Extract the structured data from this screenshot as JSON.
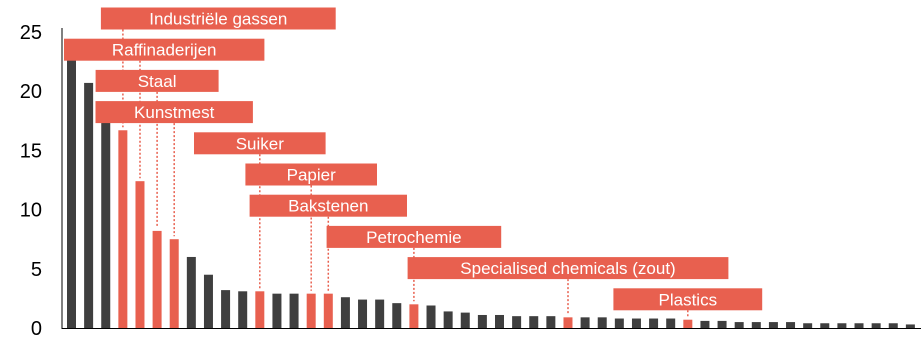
{
  "chart_data": {
    "type": "bar",
    "title": "",
    "xlabel": "",
    "ylabel": "",
    "ylim": [
      0,
      25
    ],
    "yticks": [
      0,
      5,
      10,
      15,
      20,
      25
    ],
    "grid": false,
    "values": [
      24.1,
      20.7,
      18.2,
      16.7,
      12.4,
      8.2,
      7.5,
      6.0,
      4.5,
      3.2,
      3.1,
      3.1,
      2.9,
      2.9,
      2.9,
      2.9,
      2.6,
      2.4,
      2.4,
      2.1,
      2.0,
      1.9,
      1.4,
      1.3,
      1.1,
      1.1,
      1.0,
      1.0,
      1.0,
      0.9,
      0.9,
      0.9,
      0.8,
      0.8,
      0.8,
      0.8,
      0.7,
      0.6,
      0.6,
      0.5,
      0.5,
      0.5,
      0.5,
      0.4,
      0.4,
      0.4,
      0.4,
      0.4,
      0.4,
      0.3
    ],
    "highlighted": [
      3,
      4,
      5,
      6,
      11,
      14,
      15,
      20,
      29,
      36
    ],
    "colors": {
      "default": "#3f3f3f",
      "highlight": "#e8604f",
      "label_text": "#ffffff"
    },
    "annotations": [
      {
        "text": "Industriële gassen",
        "bar": 3
      },
      {
        "text": "Raffinaderijen",
        "bar": 4
      },
      {
        "text": "Staal",
        "bar": 5
      },
      {
        "text": "Kunstmest",
        "bar": 6
      },
      {
        "text": "Suiker",
        "bar": 11
      },
      {
        "text": "Papier",
        "bar": 14
      },
      {
        "text": "Bakstenen",
        "bar": 15
      },
      {
        "text": "Petrochemie",
        "bar": 20
      },
      {
        "text": "Specialised chemicals (zout)",
        "bar": 29
      },
      {
        "text": "Plastics",
        "bar": 36
      }
    ]
  }
}
